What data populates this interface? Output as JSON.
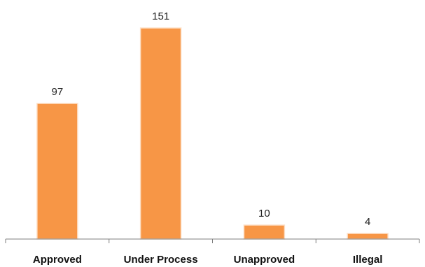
{
  "chart_data": {
    "type": "bar",
    "title": "",
    "xlabel": "",
    "ylabel": "",
    "categories": [
      "Approved",
      "Under Process",
      "Unapproved",
      "Illegal"
    ],
    "values": [
      97,
      151,
      10,
      4
    ],
    "ylim": [
      0,
      151
    ],
    "grid": false,
    "legend": "none",
    "bar_color": "#f79646",
    "bar_edge_color": "#fde0c8",
    "show_data_labels": true
  }
}
